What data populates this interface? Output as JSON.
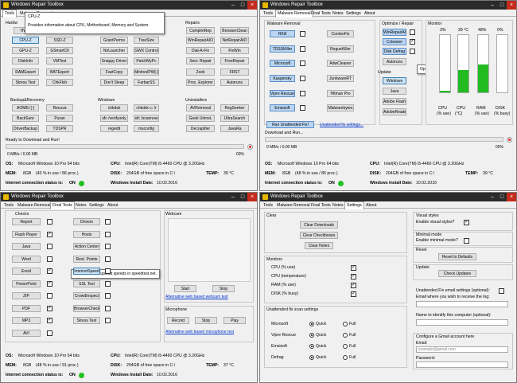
{
  "app": {
    "title": "Windows Repair Toolbox"
  },
  "tabs_q1": [
    "Tools",
    "Malware Removal",
    "Final Tests",
    "Notes",
    "Settings",
    "About"
  ],
  "q1": {
    "tooltip_title": "CPU-Z",
    "tooltip_text": "Provides information about CPU, Motherboard, Memory and System.",
    "hardware_label": "Hardw",
    "repairs_label": "Repairs",
    "backup_label": "Backup&Recovery",
    "windows_label": "Windows",
    "uninstallers_label": "Uninstallers",
    "hw_buttons": [
      "HWi",
      "CPU-Z",
      "SSD-Z",
      "GPU-Z",
      "GSmartCtl",
      "DiskInfo",
      "VMTest",
      "RAMExpert",
      "BATExpert",
      "Stress Test",
      "ChkFlsh"
    ],
    "mid_buttons": [
      "GrantPerms",
      "TreeSize",
      "NirLauncher",
      "GWX Control",
      "Snappy Driver",
      "PatchMyPc",
      "FastCopy",
      "MinitoolPW[-]",
      "Don't Sleep",
      "FarbarSS"
    ],
    "repair_buttons": [
      "ComplntRep",
      "BrowserClean",
      "WinRepairAIO",
      "NetRepairAIO",
      "Dial-A-Fix",
      "FixWin",
      "Serv. Repair",
      "FreeRepair",
      "Zoek",
      "FRST",
      "Proc. Explorer",
      "Autoruns"
    ],
    "backup_buttons": [
      "AOMEI [-]",
      "Recuva",
      "BackSure",
      "Puran",
      "DriverBackup",
      "TDSPR"
    ],
    "windows_buttons": [
      "chkdsk",
      "chkdsk c: /r",
      "sfc /verifyonly",
      "sfc /scannow",
      "regedit",
      "msconfig"
    ],
    "uninstall_buttons": [
      "AVRemoval",
      "RegSeeker",
      "Geek Uninst.",
      "UltraSearch",
      "Decrapifier",
      "JavaRa"
    ],
    "status": "Ready to Download and Run!",
    "speed_left": "0 MB/s / 0.00 MB",
    "speed_right": "00%"
  },
  "sysinfo": {
    "os_label": "OS:",
    "os_value": "Microsoft Windows 10 Pro 64 bits",
    "cpu_label": "CPU:",
    "cpu_value": "Intel(R) Core(TM) i5-4460 CPU @ 3.20GHz",
    "mem_label": "MEM:",
    "mem_value": "8GB",
    "mem_detail": "(40 % in use / 86 proc.)",
    "disk_label": "DISK:",
    "disk_value": "204GB of free space in C:\\",
    "temp_label": "TEMP:",
    "temp_value": "39 °C",
    "inet_label": "Internet connection status is:",
    "inet_value": "ON",
    "date_label": "Windows Install Date:",
    "date_value": "10.02.2016"
  },
  "q2": {
    "malware_label": "Malware Removal",
    "malware_left": [
      "RKill",
      "TDSSKiller",
      "Microsoft",
      "Kaspersky",
      "Vipre Rescue",
      "Emsisoft"
    ],
    "malware_right": [
      "ComboFix",
      "RogueKiller",
      "AdwCleaner",
      "JunkwareRT",
      "Hitman Pro",
      "Malwarebytes"
    ],
    "run_unattended": "Run Unattended Fix!",
    "unattended_link": "Unattended fix settings...",
    "optimize_label": "Optimize / Repair",
    "optimize_buttons": [
      "WinRepairAIO",
      "Ccleaner",
      "Disk Defrag",
      "Autoruns"
    ],
    "update_label": "Update",
    "update_buttons": [
      "Windows",
      "Java",
      "Adobe Flash",
      "AdobeReader"
    ],
    "tooltip": "Opens Windows Update.",
    "monitor_label": "Monitor",
    "monitor": [
      {
        "label": "CPU",
        "sub": "(% use)",
        "value": "3%",
        "level": 0.03
      },
      {
        "label": "CPU",
        "sub": "(°C)",
        "value": "39 °C",
        "level": 0.39
      },
      {
        "label": "RAM",
        "sub": "(% use)",
        "value": "48%",
        "level": 0.48
      },
      {
        "label": "DISK",
        "sub": "(% busy)",
        "value": "0%",
        "level": 0.0
      }
    ],
    "status": "Download and Run...",
    "speed_left": "0 MB/s / 0.00 MB",
    "speed_right": "00%",
    "mem_detail": "(48 % in use / 86 proc.)",
    "temp_value": "39 °C"
  },
  "q3": {
    "checks_label": "Checks",
    "checks_left": [
      "Report",
      "Flash Player",
      "Java",
      "Word",
      "Excel",
      "PowerPoint",
      "ZIP",
      "PDF",
      "MP3",
      "AVI"
    ],
    "checks_right": [
      "Drivers",
      "Hosts",
      "Action Center",
      "Rest. Points",
      "InternetSpeed",
      "SSL Test",
      "CrowdInspect",
      "BrowserCheck",
      "Stress Test"
    ],
    "tooltip": "Test download/upload speeds in speedtest.net.",
    "webcam_label": "Webcam",
    "webcam_start": "Start",
    "webcam_stop": "Stop",
    "webcam_link": "Alternative web based webcam test",
    "mic_label": "Microphone",
    "mic_record": "Record",
    "mic_stop": "Stop",
    "mic_play": "Play",
    "mic_link": "Alternative web based microphone test",
    "mem_detail": "(48 % in use / 91 proc.)",
    "temp_value": "37 °C"
  },
  "q4": {
    "clear_label": "Clear",
    "clear_buttons": [
      "Clear Downloads",
      "Clear Checkboxes",
      "Clear Notes"
    ],
    "monitors_label": "Monitors",
    "monitors": [
      "CPU (% use)",
      "CPU (temperature)",
      "RAM (% use)",
      "DISK (% busy)"
    ],
    "unattended_label": "Unattended fix scan settings",
    "scans": [
      "Microsoft",
      "Vipre Rescue",
      "Emsisoft",
      "Defrag"
    ],
    "quick": "Quick",
    "full": "Full",
    "visual_label": "Visual styles",
    "visual_enable": "Enable visual styles?",
    "minimal_label": "Minimal mode",
    "minimal_enable": "Enable minimal mode?",
    "reset_label": "Reset",
    "reset_button": "Reset to Defaults",
    "update_label": "Update",
    "update_button": "Check Updates",
    "unattended_optional": "Unattended Fix email settings (optional):",
    "email_receive": "Email where you wish to receive the log:",
    "name_identify": "Name to identify this computer (optional):",
    "gmail_label": "Configure a Gmail account here",
    "email_label": "Email:",
    "email_placeholder": "example@gmail.com",
    "password_label": "Password:"
  }
}
